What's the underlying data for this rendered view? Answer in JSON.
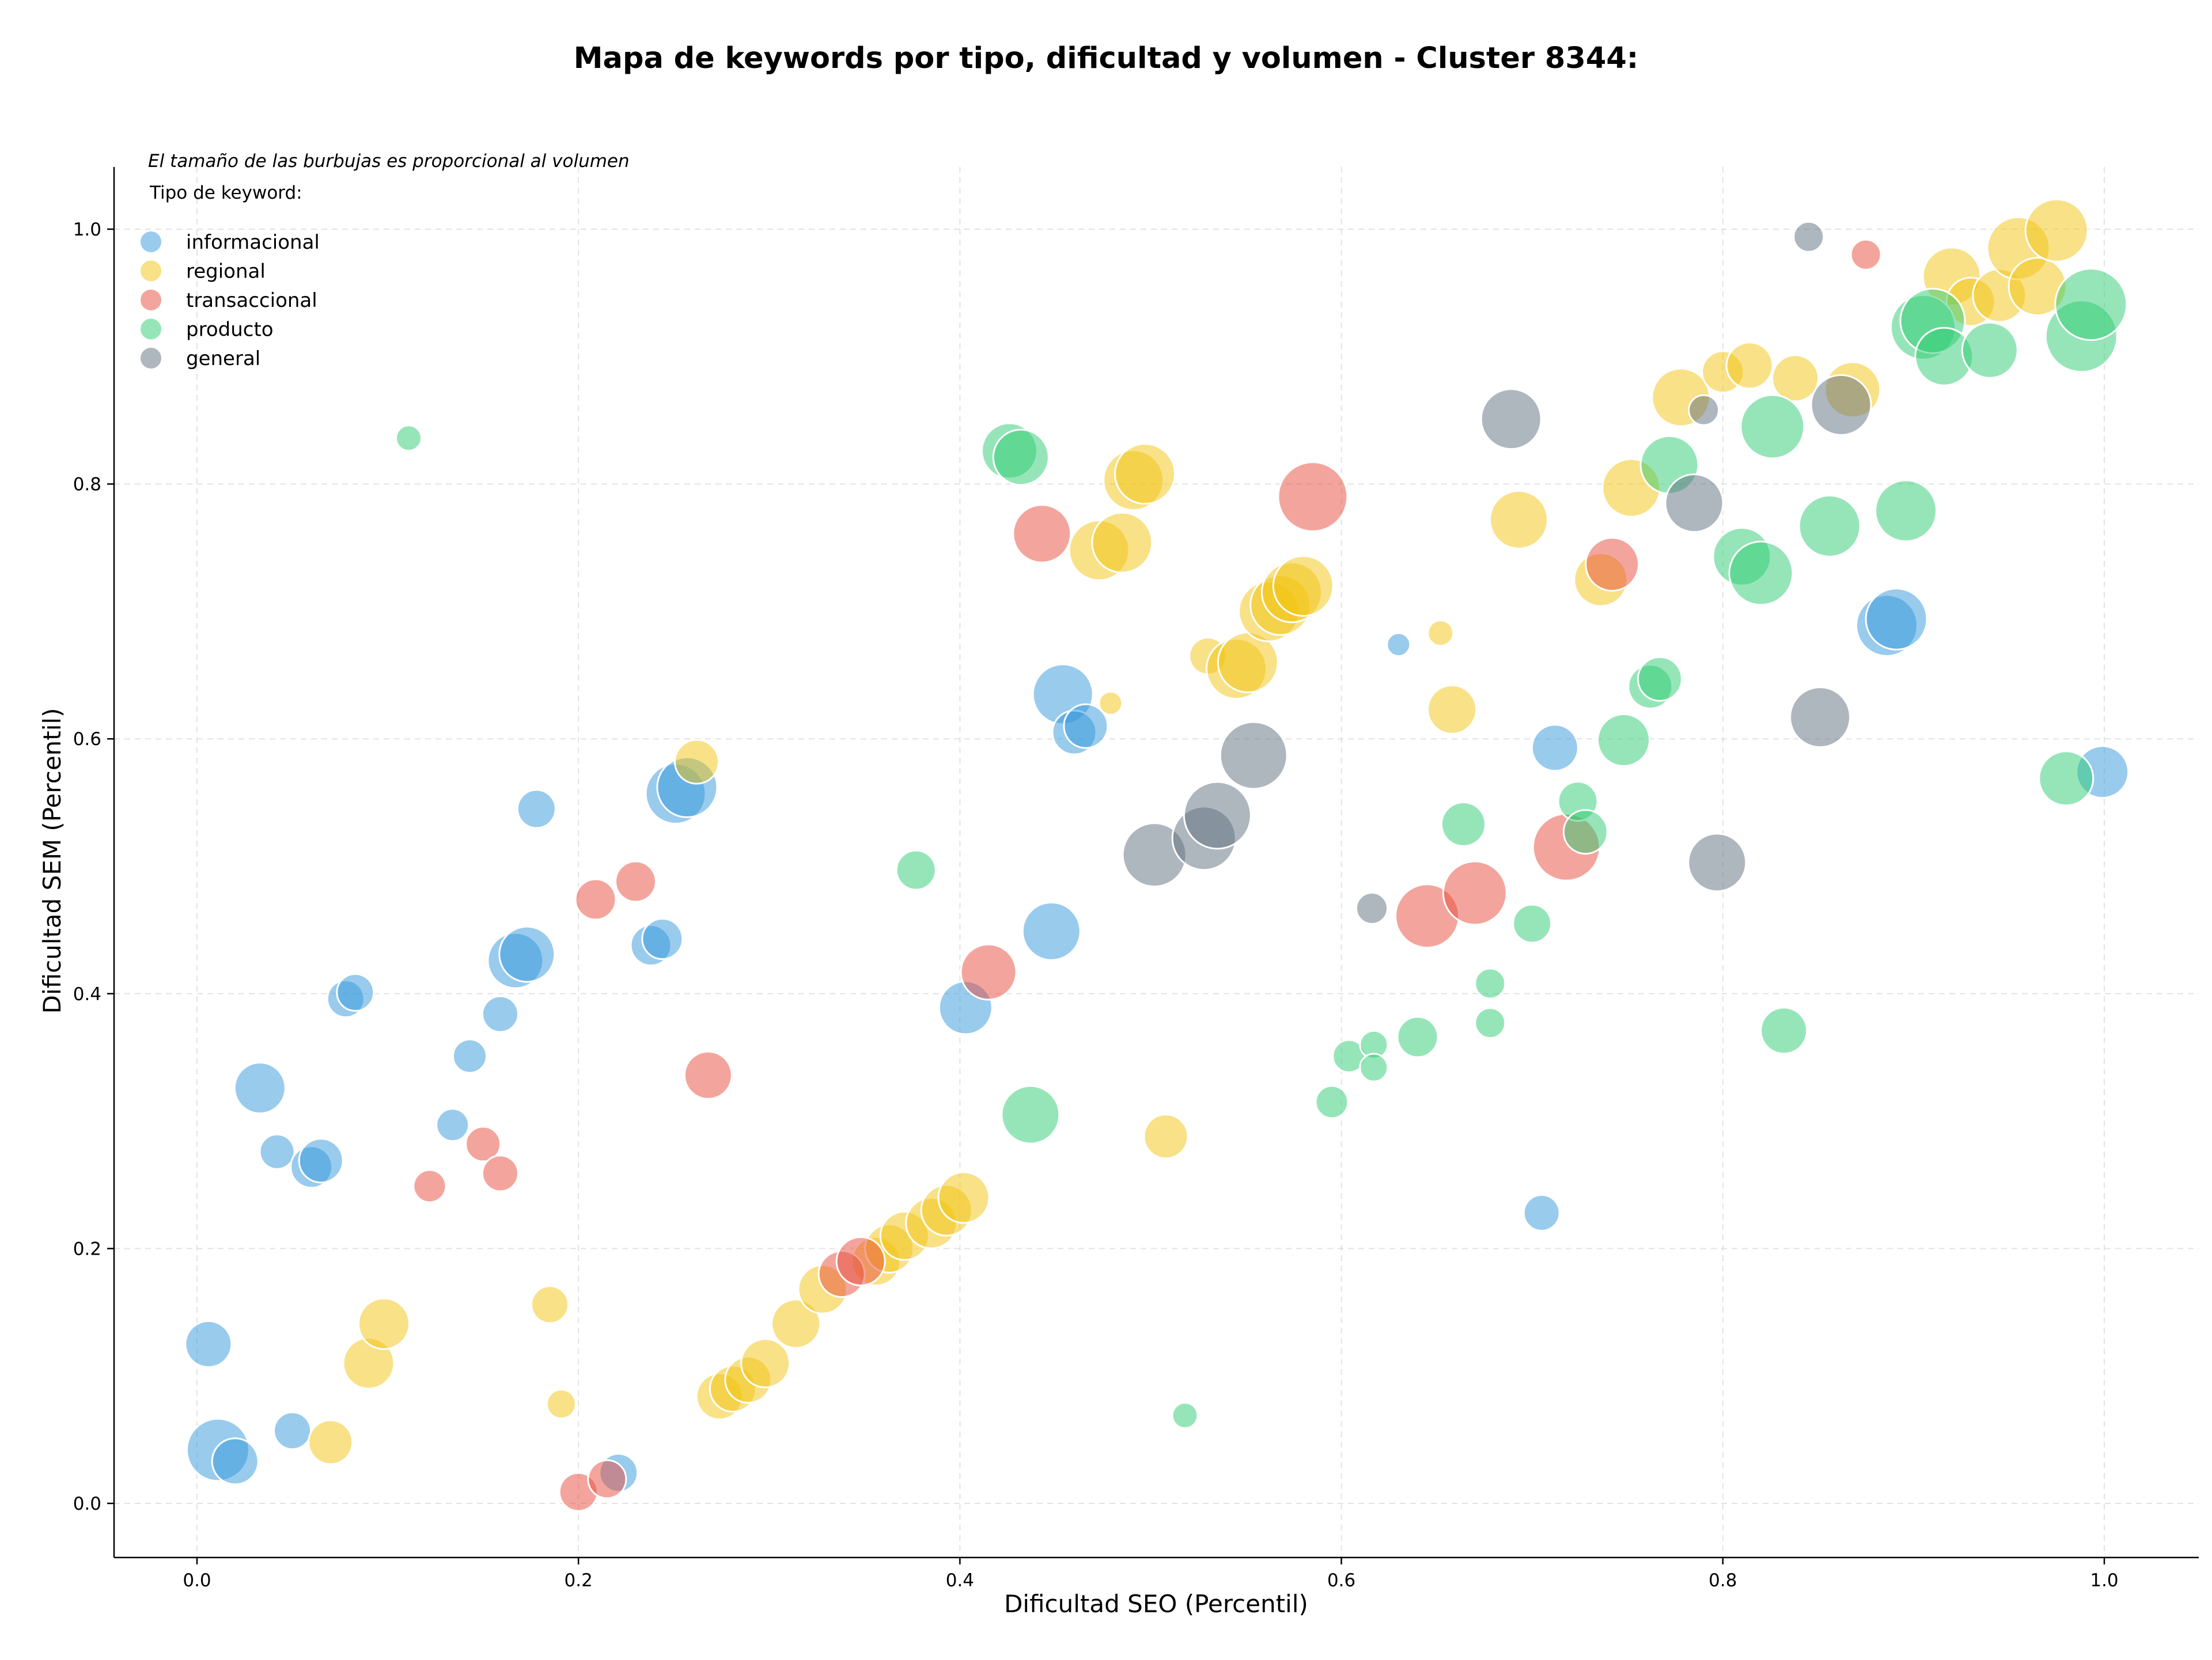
{
  "chart_data": {
    "type": "scatter",
    "title": "Mapa de keywords por tipo, dificultad y volumen - Cluster 8344:",
    "xlabel": "Dificultad SEO (Percentil)",
    "ylabel": "Dificultad SEM (Percentil)",
    "xlim": [
      -0.04,
      1.05
    ],
    "ylim": [
      -0.04,
      1.05
    ],
    "xticks": [
      "0.0",
      "0.2",
      "0.4",
      "0.6",
      "0.8",
      "1.0"
    ],
    "yticks": [
      "0.0",
      "0.2",
      "0.4",
      "0.6",
      "0.8",
      "1.0"
    ],
    "grid": true,
    "note": "El tamaño de las burbujas es proporcional al volumen",
    "legend_title": "Tipo de keyword:",
    "legend_position": "top-left",
    "series": [
      {
        "name": "informacional",
        "color": "#3498db",
        "points": [
          [
            0.006,
            0.125,
            40
          ],
          [
            0.011,
            0.042,
            54
          ],
          [
            0.02,
            0.033,
            40
          ],
          [
            0.033,
            0.326,
            44
          ],
          [
            0.042,
            0.276,
            30
          ],
          [
            0.05,
            0.057,
            32
          ],
          [
            0.06,
            0.264,
            36
          ],
          [
            0.065,
            0.269,
            38
          ],
          [
            0.078,
            0.396,
            32
          ],
          [
            0.083,
            0.401,
            32
          ],
          [
            0.134,
            0.297,
            28
          ],
          [
            0.143,
            0.351,
            29
          ],
          [
            0.159,
            0.384,
            31
          ],
          [
            0.167,
            0.426,
            48
          ],
          [
            0.173,
            0.431,
            48
          ],
          [
            0.178,
            0.545,
            33
          ],
          [
            0.221,
            0.024,
            33
          ],
          [
            0.238,
            0.438,
            35
          ],
          [
            0.244,
            0.443,
            35
          ],
          [
            0.251,
            0.557,
            52
          ],
          [
            0.257,
            0.562,
            52
          ],
          [
            0.403,
            0.389,
            46
          ],
          [
            0.448,
            0.449,
            50
          ],
          [
            0.454,
            0.635,
            52
          ],
          [
            0.46,
            0.605,
            38
          ],
          [
            0.466,
            0.61,
            38
          ],
          [
            0.63,
            0.674,
            20
          ],
          [
            0.705,
            0.228,
            31
          ],
          [
            0.712,
            0.593,
            40
          ],
          [
            0.886,
            0.689,
            53
          ],
          [
            0.891,
            0.694,
            53
          ],
          [
            0.999,
            0.574,
            45
          ]
        ]
      },
      {
        "name": "regional",
        "color": "#f1c40f",
        "points": [
          [
            0.07,
            0.048,
            38
          ],
          [
            0.09,
            0.11,
            44
          ],
          [
            0.098,
            0.141,
            44
          ],
          [
            0.185,
            0.156,
            32
          ],
          [
            0.191,
            0.078,
            25
          ],
          [
            0.262,
            0.582,
            38
          ],
          [
            0.274,
            0.084,
            40
          ],
          [
            0.281,
            0.09,
            40
          ],
          [
            0.289,
            0.097,
            40
          ],
          [
            0.298,
            0.11,
            42
          ],
          [
            0.314,
            0.141,
            42
          ],
          [
            0.328,
            0.168,
            42
          ],
          [
            0.356,
            0.19,
            42
          ],
          [
            0.363,
            0.2,
            42
          ],
          [
            0.371,
            0.21,
            42
          ],
          [
            0.385,
            0.22,
            44
          ],
          [
            0.393,
            0.23,
            44
          ],
          [
            0.402,
            0.24,
            44
          ],
          [
            0.473,
            0.748,
            52
          ],
          [
            0.485,
            0.754,
            52
          ],
          [
            0.479,
            0.628,
            20
          ],
          [
            0.491,
            0.803,
            52
          ],
          [
            0.497,
            0.808,
            52
          ],
          [
            0.508,
            0.288,
            38
          ],
          [
            0.53,
            0.665,
            32
          ],
          [
            0.545,
            0.655,
            52
          ],
          [
            0.551,
            0.66,
            52
          ],
          [
            0.562,
            0.7,
            52
          ],
          [
            0.568,
            0.705,
            52
          ],
          [
            0.574,
            0.715,
            52
          ],
          [
            0.58,
            0.72,
            52
          ],
          [
            0.652,
            0.683,
            22
          ],
          [
            0.658,
            0.623,
            42
          ],
          [
            0.693,
            0.772,
            50
          ],
          [
            0.736,
            0.725,
            46
          ],
          [
            0.752,
            0.797,
            50
          ],
          [
            0.778,
            0.868,
            50
          ],
          [
            0.8,
            0.888,
            36
          ],
          [
            0.814,
            0.893,
            40
          ],
          [
            0.838,
            0.883,
            40
          ],
          [
            0.868,
            0.874,
            48
          ],
          [
            0.92,
            0.963,
            50
          ],
          [
            0.93,
            0.943,
            42
          ],
          [
            0.945,
            0.948,
            46
          ],
          [
            0.955,
            0.985,
            54
          ],
          [
            0.965,
            0.955,
            50
          ],
          [
            0.975,
            0.999,
            54
          ]
        ]
      },
      {
        "name": "transaccional",
        "color": "#e74c3c",
        "points": [
          [
            0.122,
            0.249,
            28
          ],
          [
            0.15,
            0.282,
            30
          ],
          [
            0.159,
            0.259,
            31
          ],
          [
            0.2,
            0.009,
            33
          ],
          [
            0.209,
            0.474,
            35
          ],
          [
            0.215,
            0.019,
            33
          ],
          [
            0.23,
            0.488,
            35
          ],
          [
            0.268,
            0.336,
            41
          ],
          [
            0.338,
            0.18,
            40
          ],
          [
            0.348,
            0.19,
            42
          ],
          [
            0.415,
            0.417,
            48
          ],
          [
            0.443,
            0.761,
            50
          ],
          [
            0.585,
            0.79,
            60
          ],
          [
            0.645,
            0.461,
            55
          ],
          [
            0.67,
            0.479,
            55
          ],
          [
            0.718,
            0.515,
            58
          ],
          [
            0.742,
            0.737,
            46
          ],
          [
            0.875,
            0.98,
            26
          ]
        ]
      },
      {
        "name": "producto",
        "color": "#2ecc71",
        "points": [
          [
            0.111,
            0.836,
            22
          ],
          [
            0.377,
            0.497,
            34
          ],
          [
            0.426,
            0.826,
            48
          ],
          [
            0.432,
            0.821,
            48
          ],
          [
            0.437,
            0.305,
            50
          ],
          [
            0.518,
            0.069,
            22
          ],
          [
            0.595,
            0.315,
            28
          ],
          [
            0.604,
            0.351,
            28
          ],
          [
            0.617,
            0.36,
            24
          ],
          [
            0.617,
            0.342,
            24
          ],
          [
            0.64,
            0.366,
            35
          ],
          [
            0.664,
            0.533,
            38
          ],
          [
            0.678,
            0.408,
            26
          ],
          [
            0.678,
            0.377,
            26
          ],
          [
            0.7,
            0.455,
            33
          ],
          [
            0.724,
            0.551,
            34
          ],
          [
            0.728,
            0.527,
            38
          ],
          [
            0.748,
            0.599,
            45
          ],
          [
            0.762,
            0.641,
            38
          ],
          [
            0.767,
            0.647,
            38
          ],
          [
            0.772,
            0.815,
            50
          ],
          [
            0.81,
            0.743,
            50
          ],
          [
            0.82,
            0.73,
            55
          ],
          [
            0.826,
            0.845,
            55
          ],
          [
            0.832,
            0.371,
            40
          ],
          [
            0.856,
            0.767,
            53
          ],
          [
            0.896,
            0.779,
            53
          ],
          [
            0.905,
            0.923,
            56
          ],
          [
            0.91,
            0.928,
            56
          ],
          [
            0.916,
            0.9,
            50
          ],
          [
            0.94,
            0.905,
            48
          ],
          [
            0.98,
            0.569,
            47
          ],
          [
            0.988,
            0.916,
            62
          ],
          [
            0.993,
            0.941,
            62
          ]
        ]
      },
      {
        "name": "general",
        "color": "#5d6d7e",
        "points": [
          [
            0.502,
            0.509,
            55
          ],
          [
            0.528,
            0.522,
            55
          ],
          [
            0.535,
            0.54,
            58
          ],
          [
            0.554,
            0.587,
            58
          ],
          [
            0.616,
            0.467,
            27
          ],
          [
            0.689,
            0.851,
            52
          ],
          [
            0.785,
            0.785,
            50
          ],
          [
            0.79,
            0.858,
            26
          ],
          [
            0.797,
            0.503,
            50
          ],
          [
            0.845,
            0.994,
            26
          ],
          [
            0.851,
            0.617,
            52
          ],
          [
            0.862,
            0.862,
            52
          ]
        ]
      }
    ]
  }
}
